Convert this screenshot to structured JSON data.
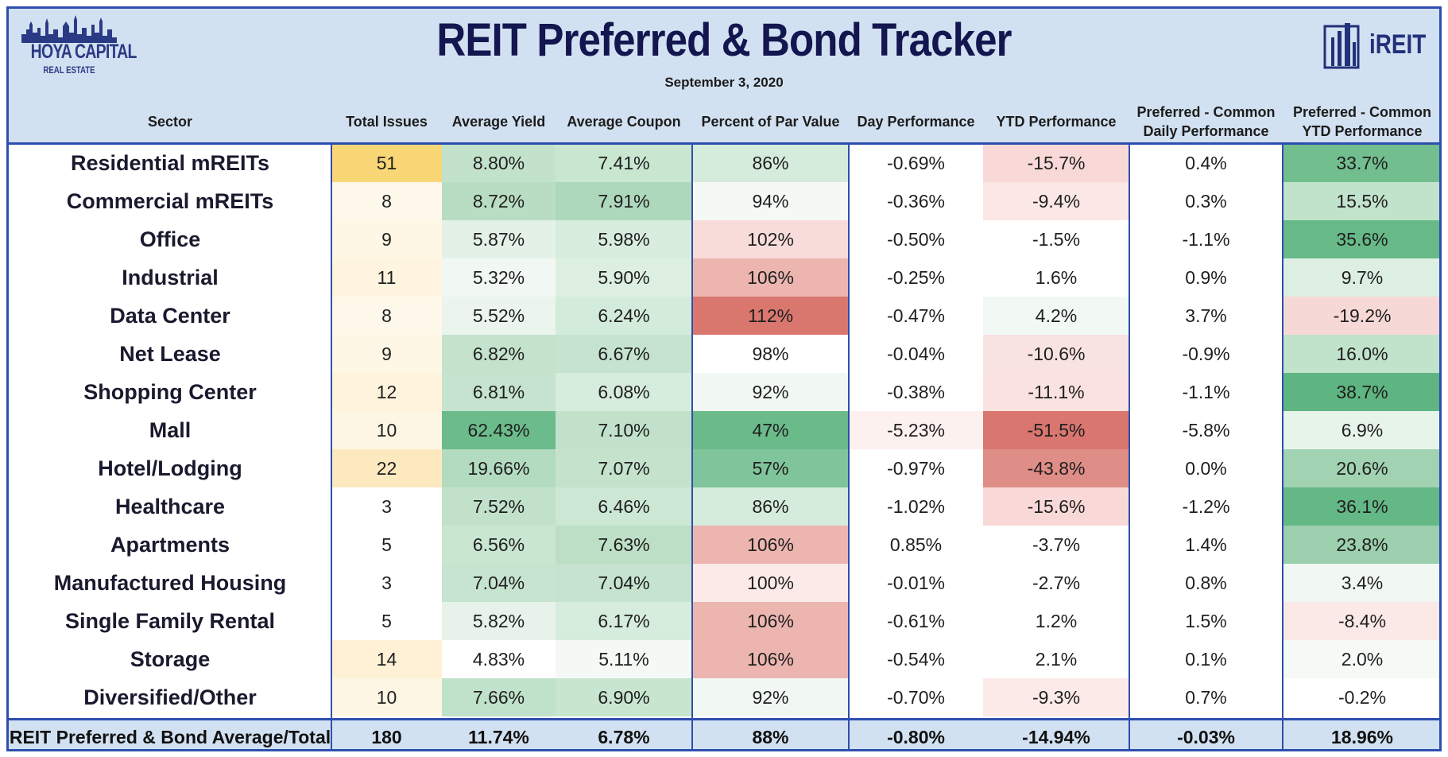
{
  "header": {
    "title": "REIT Preferred & Bond Tracker",
    "date": "September 3, 2020",
    "logo_left": {
      "brand": "HOYA CAPITAL",
      "sub": "REAL ESTATE"
    },
    "logo_right": {
      "brand": "iREIT"
    }
  },
  "columns": [
    "Sector",
    "Total Issues",
    "Average Yield",
    "Average Coupon",
    "Percent of Par Value",
    "Day Performance",
    "YTD Performance",
    "Preferred - Common\nDaily Performance",
    "Preferred - Common\nYTD Performance"
  ],
  "colors": {
    "header_bg": "#d2e1f1",
    "border": "#2e4fae",
    "green_strong": "#63b884",
    "red_strong": "#d9716b",
    "yellow_strong": "#f8d477"
  },
  "chart_data": {
    "type": "table",
    "title": "REIT Preferred & Bond Tracker",
    "subtitle": "September 3, 2020",
    "columns": [
      "Sector",
      "Total Issues",
      "Average Yield",
      "Average Coupon",
      "Percent of Par Value",
      "Day Performance",
      "YTD Performance",
      "Preferred - Common Daily Performance",
      "Preferred - Common YTD Performance"
    ],
    "rows": [
      [
        "Residential mREITs",
        "51",
        "8.80%",
        "7.41%",
        "86%",
        "-0.69%",
        "-15.7%",
        "0.4%",
        "33.7%"
      ],
      [
        "Commercial mREITs",
        "8",
        "8.72%",
        "7.91%",
        "94%",
        "-0.36%",
        "-9.4%",
        "0.3%",
        "15.5%"
      ],
      [
        "Office",
        "9",
        "5.87%",
        "5.98%",
        "102%",
        "-0.50%",
        "-1.5%",
        "-1.1%",
        "35.6%"
      ],
      [
        "Industrial",
        "11",
        "5.32%",
        "5.90%",
        "106%",
        "-0.25%",
        "1.6%",
        "0.9%",
        "9.7%"
      ],
      [
        "Data Center",
        "8",
        "5.52%",
        "6.24%",
        "112%",
        "-0.47%",
        "4.2%",
        "3.7%",
        "-19.2%"
      ],
      [
        "Net Lease",
        "9",
        "6.82%",
        "6.67%",
        "98%",
        "-0.04%",
        "-10.6%",
        "-0.9%",
        "16.0%"
      ],
      [
        "Shopping Center",
        "12",
        "6.81%",
        "6.08%",
        "92%",
        "-0.38%",
        "-11.1%",
        "-1.1%",
        "38.7%"
      ],
      [
        "Mall",
        "10",
        "62.43%",
        "7.10%",
        "47%",
        "-5.23%",
        "-51.5%",
        "-5.8%",
        "6.9%"
      ],
      [
        "Hotel/Lodging",
        "22",
        "19.66%",
        "7.07%",
        "57%",
        "-0.97%",
        "-43.8%",
        "0.0%",
        "20.6%"
      ],
      [
        "Healthcare",
        "3",
        "7.52%",
        "6.46%",
        "86%",
        "-1.02%",
        "-15.6%",
        "-1.2%",
        "36.1%"
      ],
      [
        "Apartments",
        "5",
        "6.56%",
        "7.63%",
        "106%",
        "0.85%",
        "-3.7%",
        "1.4%",
        "23.8%"
      ],
      [
        "Manufactured Housing",
        "3",
        "7.04%",
        "7.04%",
        "100%",
        "-0.01%",
        "-2.7%",
        "0.8%",
        "3.4%"
      ],
      [
        "Single Family Rental",
        "5",
        "5.82%",
        "6.17%",
        "106%",
        "-0.61%",
        "1.2%",
        "1.5%",
        "-8.4%"
      ],
      [
        "Storage",
        "14",
        "4.83%",
        "5.11%",
        "106%",
        "-0.54%",
        "2.1%",
        "0.1%",
        "2.0%"
      ],
      [
        "Diversified/Other",
        "10",
        "7.66%",
        "6.90%",
        "92%",
        "-0.70%",
        "-9.3%",
        "0.7%",
        "-0.2%"
      ]
    ],
    "cell_shading": [
      [
        "",
        "#f9d676",
        "#c3e2cc",
        "#c9e6d1",
        "#d5ebdc",
        "#ffffff",
        "#f8d9d7",
        "#ffffff",
        "#72be8f"
      ],
      [
        "",
        "#fef8ea",
        "#b9ddc3",
        "#aed8bc",
        "#f4f9f5",
        "#ffffff",
        "#fbe8e6",
        "#ffffff",
        "#c1e2cb"
      ],
      [
        "",
        "#fef7e5",
        "#e4f1e7",
        "#d9eddf",
        "#f7dcda",
        "#ffffff",
        "#ffffff",
        "#ffffff",
        "#67b988"
      ],
      [
        "",
        "#fef4df",
        "#f1f8f3",
        "#dcefe1",
        "#ecb5b0",
        "#ffffff",
        "#ffffff",
        "#ffffff",
        "#dcefe2"
      ],
      [
        "",
        "#fef8ea",
        "#ebf5ee",
        "#d3ebda",
        "#d9776f",
        "#ffffff",
        "#f2f9f4",
        "#ffffff",
        "#f6d9d7"
      ],
      [
        "",
        "#fef7e5",
        "#c4e2cc",
        "#c6e3cf",
        "#ffffff",
        "#ffffff",
        "#f8e3e1",
        "#ffffff",
        "#c1e2cb"
      ],
      [
        "",
        "#fef3dc",
        "#c5e3ce",
        "#d6ecdd",
        "#f1f8f3",
        "#ffffff",
        "#f9e2e0",
        "#ffffff",
        "#5fb581"
      ],
      [
        "",
        "#fef6e4",
        "#6cbb8b",
        "#c1e1ca",
        "#6aba8a",
        "#fdf1ef",
        "#d9766f",
        "#ffffff",
        "#e7f4ea"
      ],
      [
        "",
        "#fde9c0",
        "#b3dbbf",
        "#c4e2cc",
        "#7fc49a",
        "#ffffff",
        "#df8d87",
        "#ffffff",
        "#a1d2b1"
      ],
      [
        "",
        "#ffffff",
        "#c2e1cb",
        "#cde7d5",
        "#d5ebdc",
        "#ffffff",
        "#f8d9d7",
        "#ffffff",
        "#64b886"
      ],
      [
        "",
        "#ffffff",
        "#c9e6d1",
        "#bcdfc5",
        "#ecb5b0",
        "#ffffff",
        "#ffffff",
        "#ffffff",
        "#9ccfad"
      ],
      [
        "",
        "#ffffff",
        "#c6e4cf",
        "#c5e3ce",
        "#fbeae8",
        "#ffffff",
        "#ffffff",
        "#ffffff",
        "#f1f8f3"
      ],
      [
        "",
        "#ffffff",
        "#e7f3ea",
        "#d6ecdd",
        "#ecb5b0",
        "#ffffff",
        "#ffffff",
        "#ffffff",
        "#fae9e7"
      ],
      [
        "",
        "#fef1d5",
        "#ffffff",
        "#f4f9f5",
        "#ecb5b0",
        "#ffffff",
        "#ffffff",
        "#ffffff",
        "#f6faf7"
      ],
      [
        "",
        "#fef6e4",
        "#c0e1ca",
        "#c8e5d0",
        "#f1f8f3",
        "#ffffff",
        "#fbeae8",
        "#ffffff",
        "#ffffff"
      ]
    ],
    "total_row": [
      "REIT Preferred & Bond Average/Total",
      "180",
      "11.74%",
      "6.78%",
      "88%",
      "-0.80%",
      "-14.94%",
      "-0.03%",
      "18.96%"
    ]
  }
}
